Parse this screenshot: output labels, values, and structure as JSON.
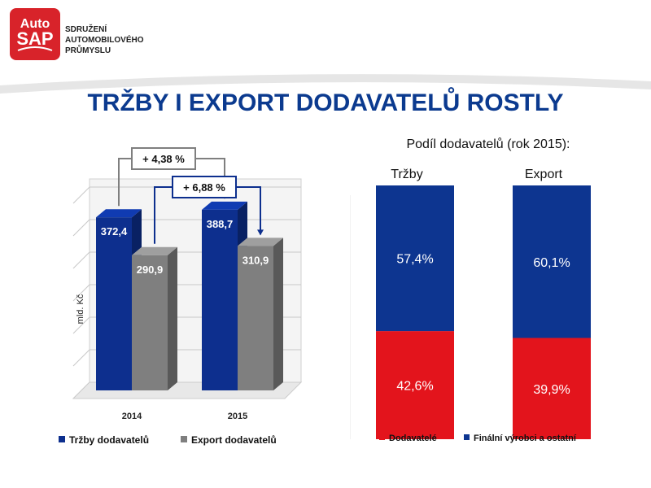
{
  "logo": {
    "text_line1": "Auto",
    "text_line2": "SAP",
    "org_lines": [
      "SDRUŽENÍ",
      "AUTOMOBILOVÉHO",
      "PRŮMYSLU"
    ]
  },
  "title": "TRŽBY I EXPORT DODAVATELŮ ROSTLY",
  "chart_data": [
    {
      "type": "bar",
      "ylabel": "mld. Kč",
      "categories": [
        "2014",
        "2015"
      ],
      "series": [
        {
          "name": "Tržby dodavatelů",
          "values": [
            372.4,
            388.7
          ],
          "labels": [
            "372,4",
            "388,7"
          ],
          "color": "#0d2f8e"
        },
        {
          "name": "Export dodavatelů",
          "values": [
            290.9,
            310.9
          ],
          "labels": [
            "290,9",
            "310,9"
          ],
          "color": "#7f7f7f"
        }
      ],
      "ylim": [
        0,
        420
      ],
      "annotations": [
        {
          "text": "+ 4,38 %",
          "series": "Tržby dodavatelů"
        },
        {
          "text": "+ 6,88 %",
          "series": "Export dodavatelů"
        }
      ],
      "legend_position": "bottom"
    },
    {
      "type": "bar",
      "stacked": true,
      "title": "Podíl dodavatelů  (rok 2015):",
      "categories": [
        "Tržby",
        "Export"
      ],
      "series": [
        {
          "name": "Dodavatelé",
          "values": [
            42.6,
            39.9
          ],
          "labels": [
            "42,6%",
            "39,9%"
          ],
          "color": "#e3141c"
        },
        {
          "name": "Finální výrobci a ostatní",
          "values": [
            57.4,
            60.1
          ],
          "labels": [
            "57,4%",
            "60,1%"
          ],
          "color": "#0d3590"
        }
      ],
      "ylim": [
        0,
        100
      ],
      "legend_position": "bottom"
    }
  ]
}
